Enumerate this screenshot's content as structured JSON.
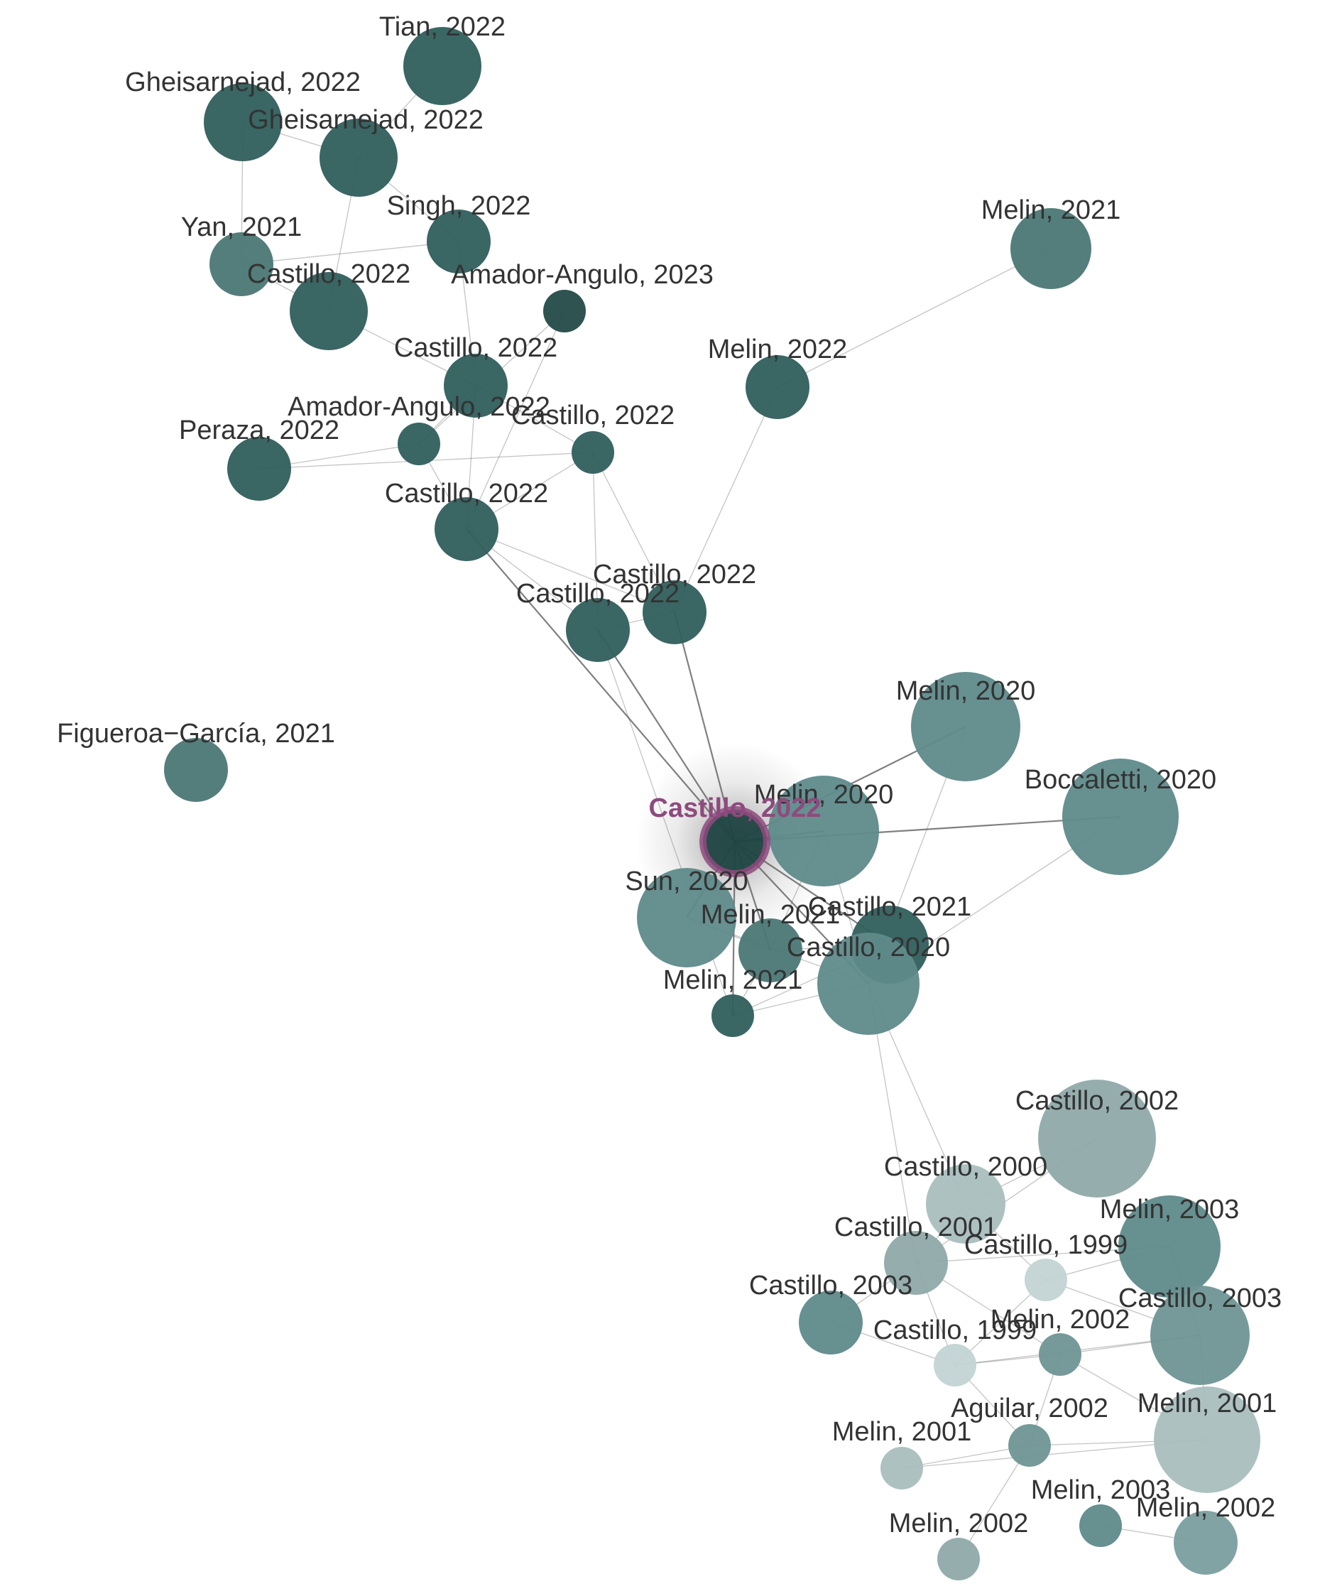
{
  "selected_node": "n31",
  "colors": {
    "cluster_recent": "#2f5e5c",
    "cluster_mid": "#5f8a8a",
    "cluster_old": "#a9bebe",
    "selected_ring": "#8e4a7e",
    "selected_label": "#8e4a7e",
    "label": "#333333",
    "edge": "#555555"
  },
  "nodes": [
    {
      "id": "n1",
      "label": "Tian, 2022",
      "color": "#2f5e5c",
      "size": "large"
    },
    {
      "id": "n2",
      "label": "Gheisarnejad, 2022",
      "color": "#2f5e5c",
      "size": "large"
    },
    {
      "id": "n3",
      "label": "Gheisarnejad, 2022",
      "color": "#2f5e5c",
      "size": "large"
    },
    {
      "id": "n4",
      "label": "Singh, 2022",
      "color": "#2f5e5c",
      "size": "medium"
    },
    {
      "id": "n5",
      "label": "Yan, 2021",
      "color": "#4b7775",
      "size": "medium"
    },
    {
      "id": "n6",
      "label": "Castillo, 2022",
      "color": "#2f5e5c",
      "size": "large"
    },
    {
      "id": "n7",
      "label": "Amador-Angulo, 2023",
      "color": "#234a48",
      "size": "small"
    },
    {
      "id": "n8",
      "label": "Melin, 2021",
      "color": "#4b7775",
      "size": "large"
    },
    {
      "id": "n9",
      "label": "Castillo, 2022",
      "color": "#2f5e5c",
      "size": "medium"
    },
    {
      "id": "n10",
      "label": "Melin, 2022",
      "color": "#2f5e5c",
      "size": "medium"
    },
    {
      "id": "n11",
      "label": "Amador-Angulo, 2022",
      "color": "#2f5e5c",
      "size": "small"
    },
    {
      "id": "n12",
      "label": "Castillo, 2022",
      "color": "#2f5e5c",
      "size": "small"
    },
    {
      "id": "n13",
      "label": "Peraza, 2022",
      "color": "#2f5e5c",
      "size": "medium"
    },
    {
      "id": "n14",
      "label": "Castillo, 2022",
      "color": "#2f5e5c",
      "size": "medium"
    },
    {
      "id": "n15",
      "label": "Castillo, 2022",
      "color": "#2f5e5c",
      "size": "medium"
    },
    {
      "id": "n16",
      "label": "Castillo, 2022",
      "color": "#2f5e5c",
      "size": "medium"
    },
    {
      "id": "n17",
      "label": "Figueroa−García, 2021",
      "color": "#4b7775",
      "size": "medium"
    },
    {
      "id": "n18",
      "label": "Melin, 2020",
      "color": "#5f8a8a",
      "size": "xlarge"
    },
    {
      "id": "n19",
      "label": "Boccaletti, 2020",
      "color": "#5f8a8a",
      "size": "xlarge"
    },
    {
      "id": "n20",
      "label": "Melin, 2020",
      "color": "#5f8a8a",
      "size": "xlarge"
    },
    {
      "id": "n21",
      "label": "Sun, 2020",
      "color": "#5f8a8a",
      "size": "xlarge"
    },
    {
      "id": "n22",
      "label": "Melin, 2021",
      "color": "#4b7775",
      "size": "medium"
    },
    {
      "id": "n23",
      "label": "Castillo, 2021",
      "color": "#2f5e5c",
      "size": "large"
    },
    {
      "id": "n24",
      "label": "Castillo, 2020",
      "color": "#5f8a8a",
      "size": "xlarge"
    },
    {
      "id": "n25",
      "label": "Melin, 2021",
      "color": "#2f5e5c",
      "size": "small"
    },
    {
      "id": "n26",
      "label": "Castillo, 2002",
      "color": "#8fa9a9",
      "size": "xlarge"
    },
    {
      "id": "n27",
      "label": "Castillo, 2000",
      "color": "#a9bebe",
      "size": "large"
    },
    {
      "id": "n28",
      "label": "Melin, 2003",
      "color": "#5f8a8a",
      "size": "xlarge"
    },
    {
      "id": "n29",
      "label": "Castillo, 2001",
      "color": "#8fa9a9",
      "size": "medium"
    },
    {
      "id": "n30",
      "label": "Castillo, 1999",
      "color": "#c3d3d3",
      "size": "small"
    },
    {
      "id": "n31",
      "label": "Castillo, 2022",
      "color": "#1f4442",
      "size": "medium"
    },
    {
      "id": "n32",
      "label": "Castillo, 2003",
      "color": "#5f8a8a",
      "size": "medium"
    },
    {
      "id": "n33",
      "label": "Castillo, 2003",
      "color": "#6f9595",
      "size": "xlarge"
    },
    {
      "id": "n34",
      "label": "Castillo, 1999",
      "color": "#c3d3d3",
      "size": "small"
    },
    {
      "id": "n35",
      "label": "Melin, 2002",
      "color": "#6f9595",
      "size": "small"
    },
    {
      "id": "n36",
      "label": "Melin, 2001",
      "color": "#a9bebe",
      "size": "xlarge"
    },
    {
      "id": "n37",
      "label": "Aguilar, 2002",
      "color": "#6f9595",
      "size": "small"
    },
    {
      "id": "n38",
      "label": "Melin, 2001",
      "color": "#a9bebe",
      "size": "small"
    },
    {
      "id": "n39",
      "label": "Melin, 2003",
      "color": "#5f8a8a",
      "size": "small"
    },
    {
      "id": "n40",
      "label": "Melin, 2002",
      "color": "#7a9e9e",
      "size": "medium"
    },
    {
      "id": "n41",
      "label": "Melin, 2002",
      "color": "#8fa9a9",
      "size": "small"
    }
  ],
  "edges": [
    [
      "n1",
      "n3"
    ],
    [
      "n2",
      "n3"
    ],
    [
      "n2",
      "n5"
    ],
    [
      "n3",
      "n4"
    ],
    [
      "n5",
      "n4"
    ],
    [
      "n5",
      "n6"
    ],
    [
      "n3",
      "n6"
    ],
    [
      "n4",
      "n9"
    ],
    [
      "n6",
      "n9"
    ],
    [
      "n9",
      "n11"
    ],
    [
      "n9",
      "n12"
    ],
    [
      "n9",
      "n14"
    ],
    [
      "n7",
      "n11"
    ],
    [
      "n7",
      "n14"
    ],
    [
      "n11",
      "n14"
    ],
    [
      "n13",
      "n11"
    ],
    [
      "n13",
      "n12"
    ],
    [
      "n12",
      "n14"
    ],
    [
      "n12",
      "n16"
    ],
    [
      "n12",
      "n15"
    ],
    [
      "n14",
      "n15"
    ],
    [
      "n14",
      "n16"
    ],
    [
      "n15",
      "n16"
    ],
    [
      "n10",
      "n16"
    ],
    [
      "n10",
      "n8"
    ],
    [
      "n15",
      "n31"
    ],
    [
      "n16",
      "n31"
    ],
    [
      "n14",
      "n31"
    ],
    [
      "n15",
      "n25"
    ],
    [
      "n31",
      "n20"
    ],
    [
      "n31",
      "n21"
    ],
    [
      "n31",
      "n22"
    ],
    [
      "n31",
      "n23"
    ],
    [
      "n31",
      "n24"
    ],
    [
      "n31",
      "n25"
    ],
    [
      "n18",
      "n24"
    ],
    [
      "n18",
      "n31"
    ],
    [
      "n19",
      "n31"
    ],
    [
      "n19",
      "n24"
    ],
    [
      "n20",
      "n22"
    ],
    [
      "n20",
      "n24"
    ],
    [
      "n21",
      "n22"
    ],
    [
      "n21",
      "n24"
    ],
    [
      "n22",
      "n25"
    ],
    [
      "n23",
      "n25"
    ],
    [
      "n24",
      "n25"
    ],
    [
      "n23",
      "n22"
    ],
    [
      "n24",
      "n27"
    ],
    [
      "n24",
      "n29"
    ],
    [
      "n26",
      "n27"
    ],
    [
      "n26",
      "n29"
    ],
    [
      "n27",
      "n29"
    ],
    [
      "n27",
      "n30"
    ],
    [
      "n28",
      "n30"
    ],
    [
      "n28",
      "n29"
    ],
    [
      "n29",
      "n32"
    ],
    [
      "n29",
      "n34"
    ],
    [
      "n29",
      "n35"
    ],
    [
      "n30",
      "n34"
    ],
    [
      "n30",
      "n33"
    ],
    [
      "n33",
      "n35"
    ],
    [
      "n33",
      "n36"
    ],
    [
      "n33",
      "n34"
    ],
    [
      "n34",
      "n35"
    ],
    [
      "n34",
      "n37"
    ],
    [
      "n35",
      "n37"
    ],
    [
      "n36",
      "n37"
    ],
    [
      "n37",
      "n38"
    ],
    [
      "n37",
      "n41"
    ],
    [
      "n38",
      "n36"
    ],
    [
      "n39",
      "n40"
    ],
    [
      "n35",
      "n36"
    ],
    [
      "n32",
      "n34"
    ],
    [
      "n28",
      "n33"
    ]
  ]
}
